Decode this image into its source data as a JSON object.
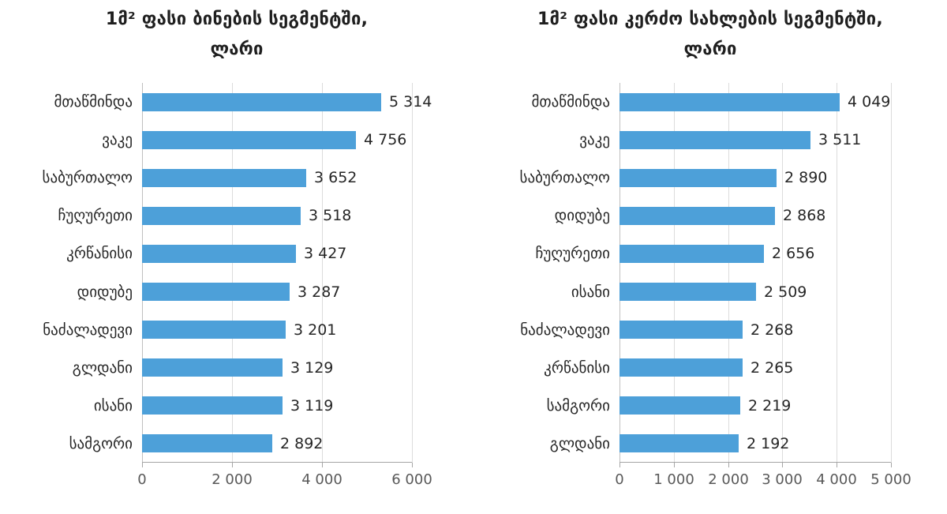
{
  "page": {
    "background": "#ffffff"
  },
  "colors": {
    "bar": "#4DA0D9",
    "gridline": "#DCDCDC",
    "axis": "#A6A6A6",
    "label_text": "#262626",
    "tick_text": "#595959"
  },
  "chart_data": [
    {
      "type": "bar",
      "orientation": "horizontal",
      "title": "1მ² ფასი ბინების სეგმენტში,",
      "subtitle": "ლარი",
      "categories": [
        "მთაწმინდა",
        "ვაკე",
        "საბურთალო",
        "ჩუღურეთი",
        "კრწანისი",
        "დიდუბე",
        "ნაძალადევი",
        "გლდანი",
        "ისანი",
        "სამგორი"
      ],
      "values": [
        5314,
        4756,
        3652,
        3518,
        3427,
        3287,
        3201,
        3129,
        3119,
        2892
      ],
      "value_labels": [
        "5 314",
        "4 756",
        "3 652",
        "3 518",
        "3 427",
        "3 287",
        "3 201",
        "3 129",
        "3 119",
        "2 892"
      ],
      "xlabel": "",
      "ylabel": "",
      "xlim": [
        0,
        6000
      ],
      "xticks": [
        0,
        2000,
        4000,
        6000
      ],
      "xtick_labels": [
        "0",
        "2 000",
        "4 000",
        "6 000"
      ],
      "grid": true,
      "legend": false,
      "bar_color": "#4DA0D9"
    },
    {
      "type": "bar",
      "orientation": "horizontal",
      "title": "1მ² ფასი კერძო სახლების სეგმენტში,",
      "subtitle": "ლარი",
      "categories": [
        "მთაწმინდა",
        "ვაკე",
        "საბურთალო",
        "დიდუბე",
        "ჩუღურეთი",
        "ისანი",
        "ნაძალადევი",
        "კრწანისი",
        "სამგორი",
        "გლდანი"
      ],
      "values": [
        4049,
        3511,
        2890,
        2868,
        2656,
        2509,
        2268,
        2265,
        2219,
        2192
      ],
      "value_labels": [
        "4 049",
        "3 511",
        "2 890",
        "2 868",
        "2 656",
        "2 509",
        "2 268",
        "2 265",
        "2 219",
        "2 192"
      ],
      "xlabel": "",
      "ylabel": "",
      "xlim": [
        0,
        5000
      ],
      "xticks": [
        0,
        1000,
        2000,
        3000,
        4000,
        5000
      ],
      "xtick_labels": [
        "0",
        "1 000",
        "2 000",
        "3 000",
        "4 000",
        "5 000"
      ],
      "grid": true,
      "legend": false,
      "bar_color": "#4DA0D9"
    }
  ]
}
